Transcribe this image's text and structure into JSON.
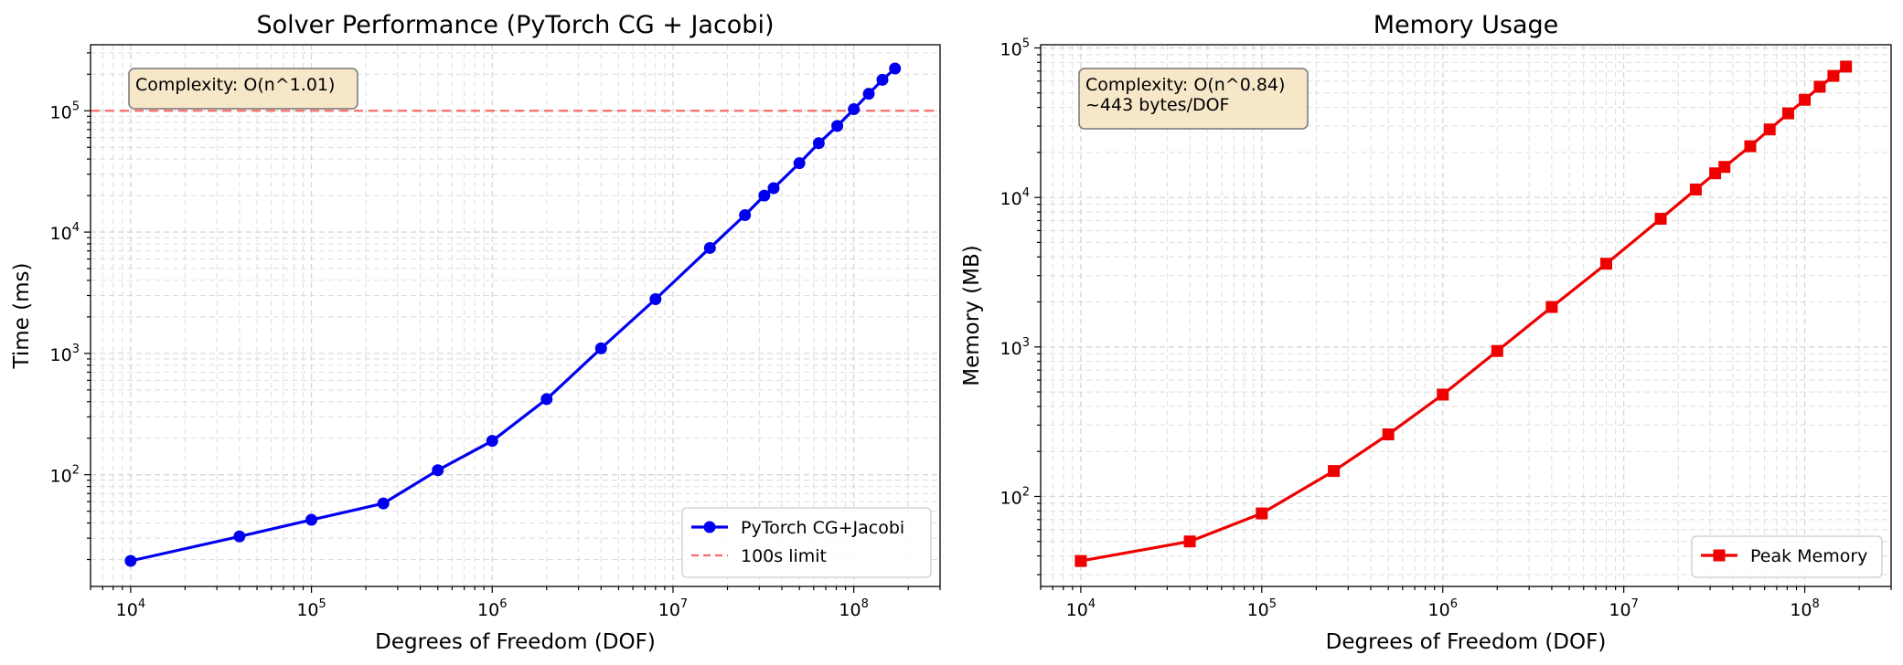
{
  "colors": {
    "series_left": "#0000ee",
    "series_right": "#ee0000",
    "limit_line": "#ff6b6b",
    "grid": "#d3d3d3",
    "annot_fill": "#f6e7c9"
  },
  "chart_data": [
    {
      "type": "line",
      "title": "Solver Performance (PyTorch CG + Jacobi)",
      "xlabel": "Degrees of Freedom (DOF)",
      "ylabel": "Time (ms)",
      "xscale": "log",
      "yscale": "log",
      "xlim": [
        6000,
        300000000
      ],
      "ylim": [
        12,
        350000
      ],
      "x_ticks": [
        {
          "base": "10",
          "exp": "4",
          "value": 10000
        },
        {
          "base": "10",
          "exp": "5",
          "value": 100000
        },
        {
          "base": "10",
          "exp": "6",
          "value": 1000000
        },
        {
          "base": "10",
          "exp": "7",
          "value": 10000000
        },
        {
          "base": "10",
          "exp": "8",
          "value": 100000000
        }
      ],
      "y_ticks": [
        {
          "base": "10",
          "exp": "2",
          "value": 100
        },
        {
          "base": "10",
          "exp": "3",
          "value": 1000
        },
        {
          "base": "10",
          "exp": "4",
          "value": 10000
        },
        {
          "base": "10",
          "exp": "5",
          "value": 100000
        }
      ],
      "grid": true,
      "legend_position": "lower-right",
      "series": [
        {
          "name": "PyTorch CG+Jacobi",
          "marker": "circle",
          "color": "#0000ee",
          "x": [
            10000,
            40000,
            100000,
            250000,
            500000,
            1000000,
            2000000,
            4000000,
            8000000,
            16000000,
            25000000,
            32000000,
            36000000,
            50000000,
            64000000,
            81000000,
            100000000,
            121000000,
            144000000,
            169000000
          ],
          "y": [
            19.5,
            31,
            42.5,
            58,
            109,
            190,
            420,
            1100,
            2800,
            7400,
            13800,
            20000,
            23000,
            37000,
            54000,
            75000,
            103000,
            138000,
            180000,
            223000
          ]
        }
      ],
      "hlines": [
        {
          "name": "100s limit",
          "y": 100000,
          "style": "dashed",
          "color": "#ff6b6b"
        }
      ],
      "annotation": {
        "lines": [
          "Complexity: O(n^1.01)"
        ],
        "position": "top-left"
      }
    },
    {
      "type": "line",
      "title": "Memory Usage",
      "xlabel": "Degrees of Freedom (DOF)",
      "ylabel": "Memory (MB)",
      "xscale": "log",
      "yscale": "log",
      "xlim": [
        6000,
        300000000
      ],
      "ylim": [
        25,
        105000
      ],
      "x_ticks": [
        {
          "base": "10",
          "exp": "4",
          "value": 10000
        },
        {
          "base": "10",
          "exp": "5",
          "value": 100000
        },
        {
          "base": "10",
          "exp": "6",
          "value": 1000000
        },
        {
          "base": "10",
          "exp": "7",
          "value": 10000000
        },
        {
          "base": "10",
          "exp": "8",
          "value": 100000000
        }
      ],
      "y_ticks": [
        {
          "base": "10",
          "exp": "2",
          "value": 100
        },
        {
          "base": "10",
          "exp": "3",
          "value": 1000
        },
        {
          "base": "10",
          "exp": "4",
          "value": 10000
        },
        {
          "base": "10",
          "exp": "5",
          "value": 100000
        }
      ],
      "grid": true,
      "legend_position": "lower-right",
      "series": [
        {
          "name": "Peak Memory",
          "marker": "square",
          "color": "#ee0000",
          "x": [
            10000,
            40000,
            100000,
            250000,
            500000,
            1000000,
            2000000,
            4000000,
            8000000,
            16000000,
            25000000,
            32000000,
            36000000,
            50000000,
            64000000,
            81000000,
            100000000,
            121000000,
            144000000,
            169000000
          ],
          "y": [
            37,
            50,
            77,
            148,
            260,
            480,
            940,
            1850,
            3600,
            7200,
            11300,
            14500,
            16000,
            22000,
            28500,
            36500,
            45000,
            55000,
            65000,
            75000
          ]
        }
      ],
      "hlines": [],
      "annotation": {
        "lines": [
          "Complexity: O(n^0.84)",
          "~443 bytes/DOF"
        ],
        "position": "top-left"
      }
    }
  ]
}
